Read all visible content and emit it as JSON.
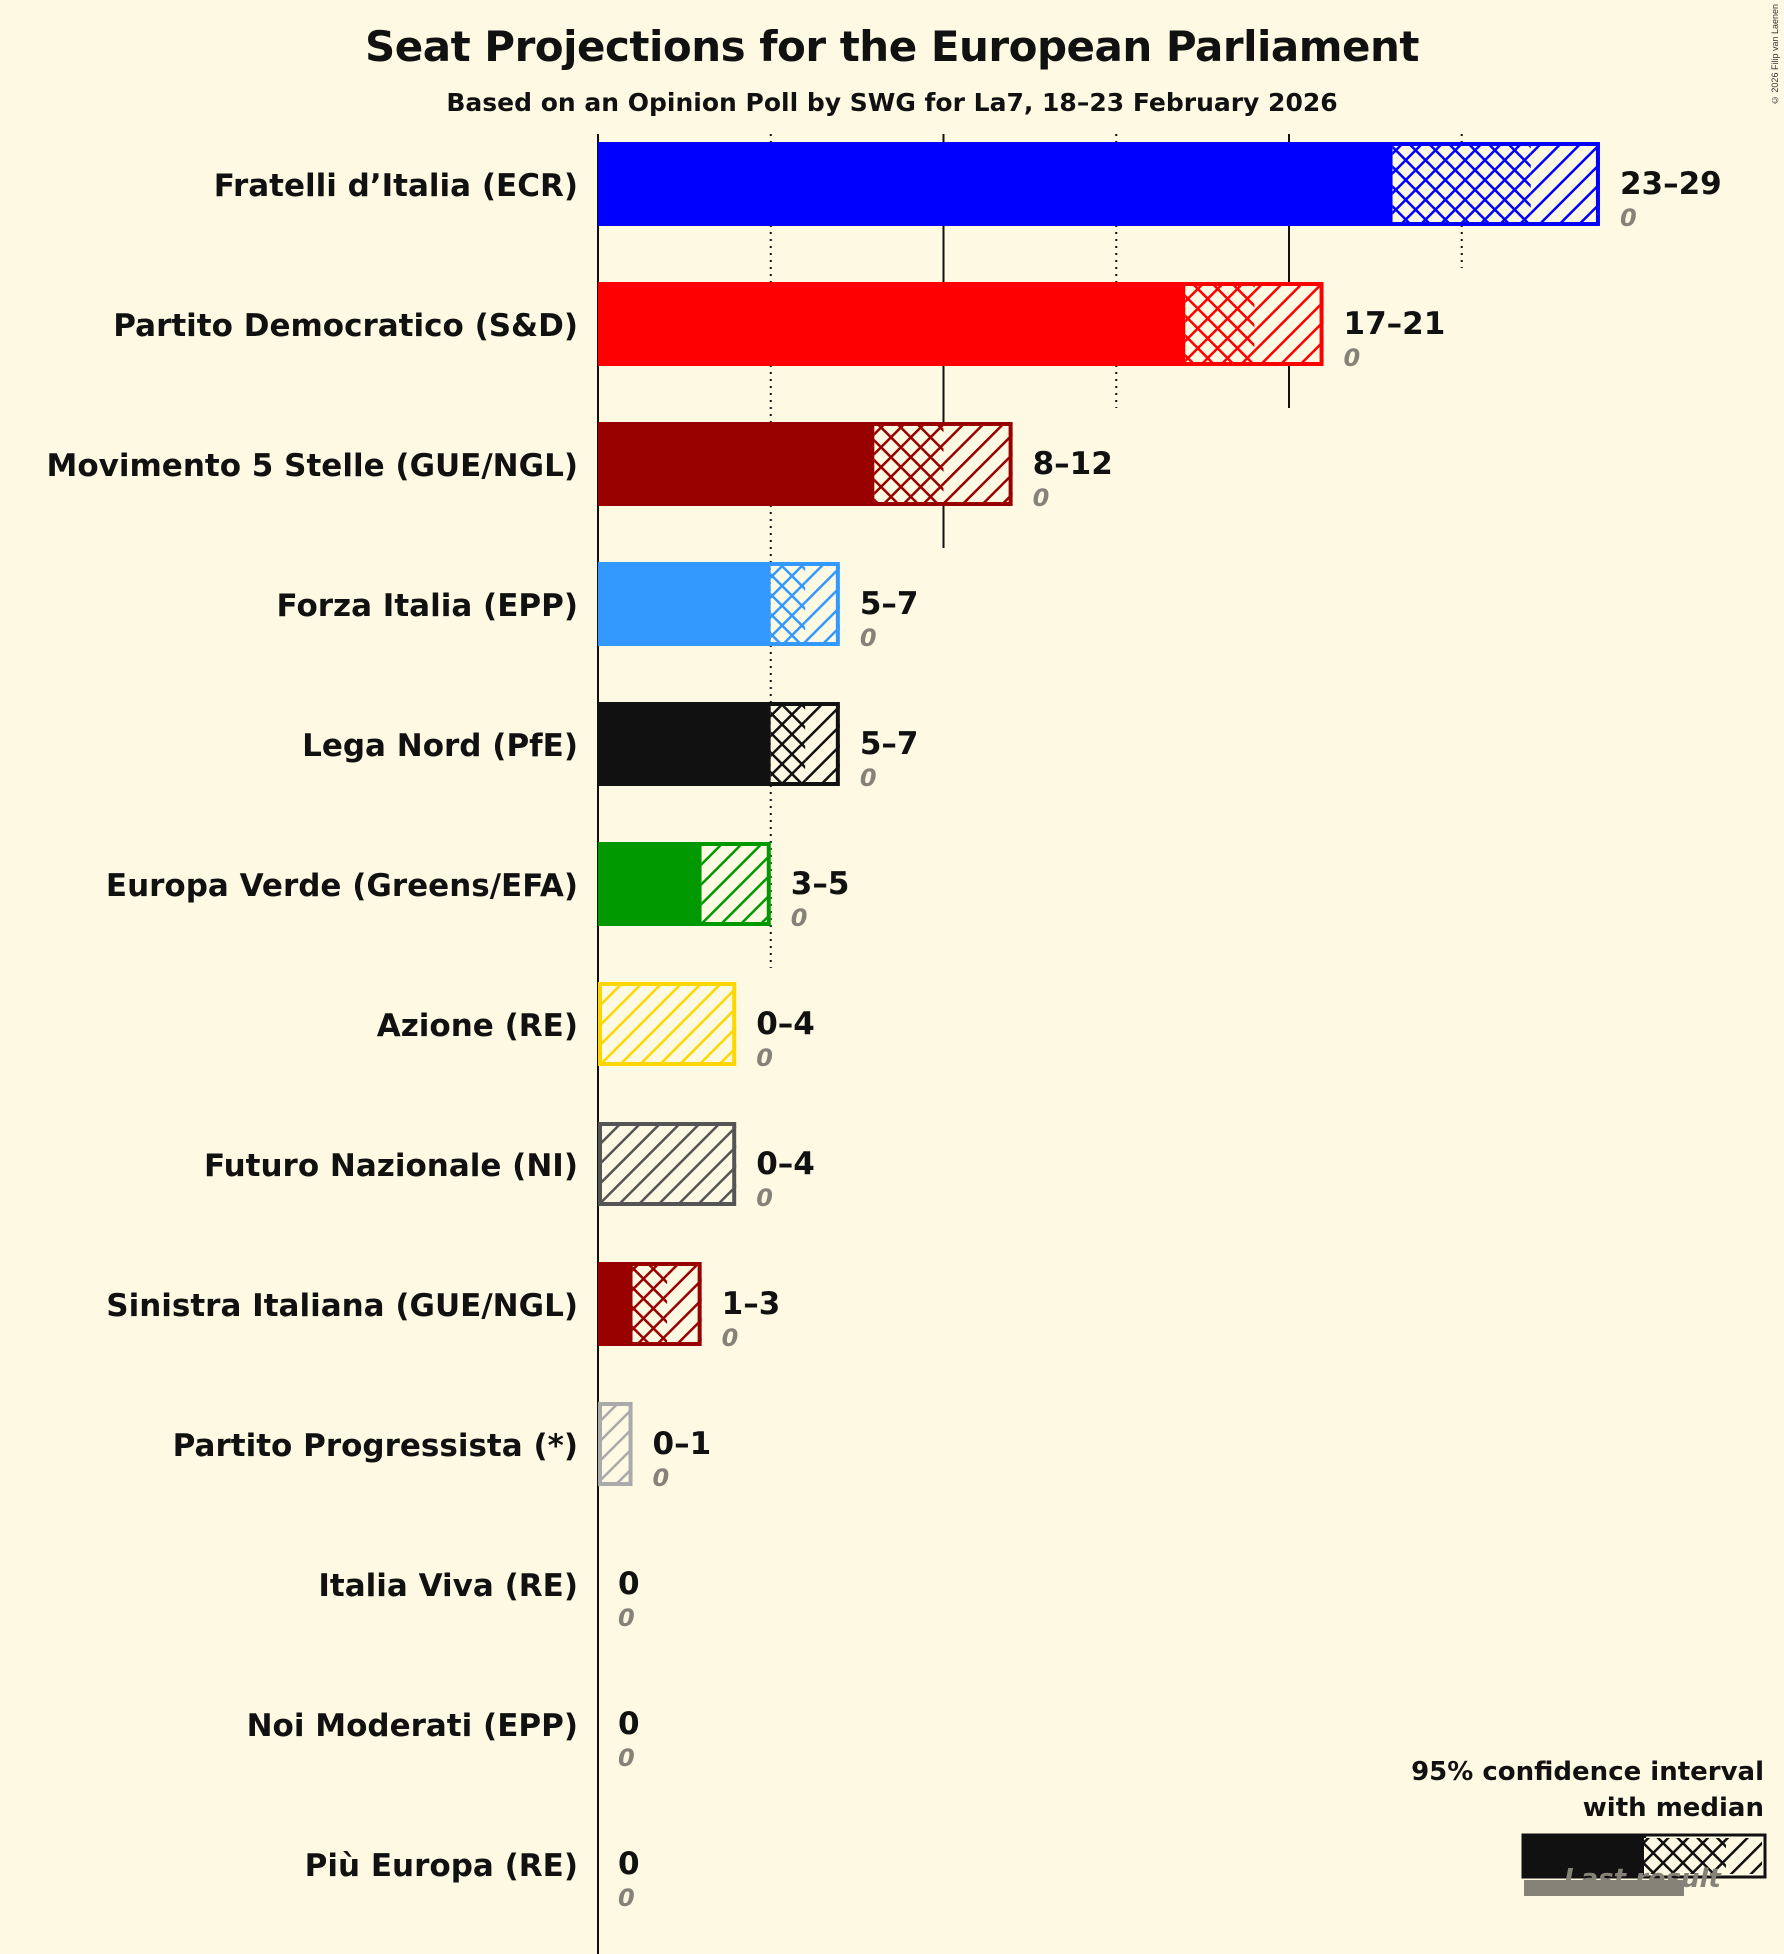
{
  "header": {
    "title": "Seat Projections for the European Parliament",
    "subtitle": "Based on an Opinion Poll by SWG for La7, 18–23 February 2026",
    "copyright": "© 2026 Filip van Laenen"
  },
  "legend": {
    "line1": "95% confidence interval",
    "line2": "with median",
    "last_result": "Last result"
  },
  "chart_data": {
    "type": "bar",
    "title": "Seat Projections for the European Parliament",
    "subtitle": "Based on an Opinion Poll by SWG for La7, 18–23 February 2026",
    "xlabel": "",
    "ylabel": "",
    "orientation": "horizontal",
    "grid": {
      "solid_every": 10,
      "dotted_every": 5
    },
    "xlim": [
      0,
      30
    ],
    "categories": [
      "Fratelli d’Italia (ECR)",
      "Partito Democratico (S&D)",
      "Movimento 5 Stelle (GUE/NGL)",
      "Forza Italia (EPP)",
      "Lega Nord (PfE)",
      "Europa Verde (Greens/EFA)",
      "Azione (RE)",
      "Futuro Nazionale (NI)",
      "Sinistra Italiana (GUE/NGL)",
      "Partito Progressista (*)",
      "Italia Viva (RE)",
      "Noi Moderati (EPP)",
      "Più Europa (RE)"
    ],
    "series": [
      {
        "name": "CI low",
        "values": [
          23,
          17,
          8,
          5,
          5,
          3,
          0,
          0,
          1,
          0,
          0,
          0,
          0
        ]
      },
      {
        "name": "Median",
        "values": [
          27,
          19,
          10,
          6,
          6,
          3,
          0,
          0,
          2,
          0,
          0,
          0,
          0
        ]
      },
      {
        "name": "CI high",
        "values": [
          29,
          21,
          12,
          7,
          7,
          5,
          4,
          4,
          3,
          1,
          0,
          0,
          0
        ]
      },
      {
        "name": "Last result",
        "values": [
          0,
          0,
          0,
          0,
          0,
          0,
          0,
          0,
          0,
          0,
          0,
          0,
          0
        ]
      }
    ],
    "range_labels": [
      "23–29",
      "17–21",
      "8–12",
      "5–7",
      "5–7",
      "3–5",
      "0–4",
      "0–4",
      "1–3",
      "0–1",
      "0",
      "0",
      "0"
    ],
    "last_labels": [
      "0",
      "0",
      "0",
      "0",
      "0",
      "0",
      "0",
      "0",
      "0",
      "0",
      "0",
      "0",
      "0"
    ],
    "colors": [
      "#0000ff",
      "#ff0000",
      "#990000",
      "#3399ff",
      "#111111",
      "#009900",
      "#ffd700",
      "#555555",
      "#990000",
      "#aaaaaa",
      "#cccccc",
      "#cccccc",
      "#cccccc"
    ],
    "legend": [
      "95% confidence interval with median",
      "Last result"
    ]
  }
}
